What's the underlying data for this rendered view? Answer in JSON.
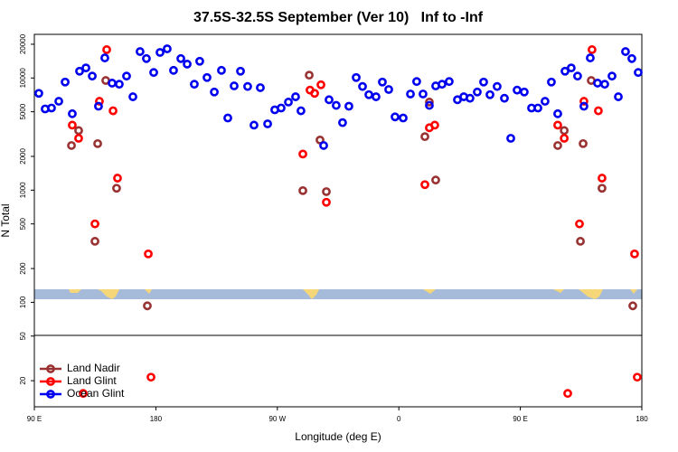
{
  "chart_data": {
    "type": "scatter",
    "title": "37.5S-32.5S September (Ver 10)   Inf to -Inf",
    "xlabel": "Longitude (deg E)",
    "ylabel": "N Total",
    "xlim": [
      90,
      540
    ],
    "xticks": [
      {
        "value": 90,
        "label": "90 E"
      },
      {
        "value": 180,
        "label": "180"
      },
      {
        "value": 270,
        "label": "90 W"
      },
      {
        "value": 360,
        "label": "0"
      },
      {
        "value": 450,
        "label": "90 E"
      },
      {
        "value": 540,
        "label": "180"
      }
    ],
    "ylim": [
      11.7,
      24500
    ],
    "yticks": [
      20,
      50,
      100,
      200,
      500,
      1000,
      2000,
      5000,
      10000,
      20000
    ],
    "log_y": true,
    "legend": "lower left",
    "series": [
      {
        "name": "Land Nadir",
        "color": "#993333",
        "x": [
          117.5,
          122.8,
          134.9,
          136.9,
          142.9,
          150.9,
          173.7,
          288.9,
          293.6,
          301.6,
          306.3,
          379.3,
          382.6,
          387.3,
          477.7,
          482.5,
          494.5,
          496.5,
          502.5,
          510.5,
          533.3
        ],
        "values": [
          2500,
          3400,
          350,
          2600,
          9500,
          1040,
          93,
          990,
          10600,
          2800,
          970,
          3000,
          6100,
          1230,
          2500,
          3400,
          350,
          2600,
          9500,
          1040,
          93
        ]
      },
      {
        "name": "Land Glint",
        "color": "#ff0000",
        "x": [
          118.1,
          122.8,
          134.9,
          138.2,
          143.6,
          148.3,
          151.6,
          174.4,
          176.4,
          126.2,
          288.9,
          294.2,
          297.6,
          302.3,
          306.3,
          379.3,
          382.6,
          386.6,
          477.7,
          482.5,
          493.8,
          497.1,
          503.1,
          507.8,
          510.5,
          534.6,
          536.6,
          485.1
        ],
        "values": [
          3800,
          2900,
          500,
          6200,
          17900,
          5100,
          1280,
          270,
          21.5,
          15.4,
          2100,
          7800,
          7300,
          8700,
          780,
          1120,
          3600,
          3800,
          3800,
          2900,
          500,
          6200,
          17900,
          5100,
          1280,
          270,
          21.5,
          15.4
        ]
      },
      {
        "name": "Ocean Glint",
        "color": "#0000ee",
        "x": [
          93.3,
          98,
          102.7,
          108.1,
          112.8,
          118.1,
          123.5,
          128.2,
          132.9,
          137.5,
          142.2,
          147.6,
          152.9,
          158.3,
          163,
          168.3,
          173,
          178.4,
          183.1,
          188.4,
          193.1,
          198.5,
          203.2,
          208.5,
          212.5,
          217.9,
          223.3,
          228.6,
          233.3,
          238,
          242.7,
          248,
          252.7,
          257.4,
          262.8,
          268.1,
          272.8,
          278.2,
          283.5,
          287.5,
          304.3,
          308.3,
          313.6,
          318.3,
          323,
          328.4,
          333.1,
          337.8,
          343.1,
          347.8,
          352.5,
          357.2,
          363.2,
          368.6,
          373.2,
          377.9,
          382.6,
          387.3,
          392,
          397.3,
          403.4,
          408.1,
          412.7,
          418.1,
          422.8,
          427.5,
          432.8,
          438.2,
          442.9,
          447.6,
          452.9,
          458.3,
          463,
          468.3,
          473,
          477.7,
          483.1,
          487.7,
          492.4,
          497.1,
          501.8,
          507.2,
          512.5,
          517.9,
          522.6,
          527.9,
          532.6,
          537.3
        ],
        "values": [
          7300,
          5300,
          5400,
          6200,
          9200,
          4800,
          11500,
          12300,
          10400,
          5600,
          15100,
          9000,
          8800,
          10400,
          6800,
          17200,
          14900,
          11200,
          16900,
          18200,
          11700,
          14900,
          13300,
          8800,
          14100,
          10100,
          7500,
          11700,
          4400,
          8500,
          11500,
          8400,
          3800,
          8200,
          3900,
          5200,
          5400,
          6100,
          6800,
          5100,
          2500,
          6400,
          5700,
          4000,
          5600,
          10100,
          8400,
          7100,
          6800,
          9200,
          7900,
          4500,
          4400,
          7200,
          9300,
          7200,
          5700,
          8500,
          8800,
          9300,
          6400,
          6800,
          6600,
          7500,
          9200,
          7100,
          8400,
          6600,
          2900,
          7800,
          7500,
          5400,
          5400,
          6200,
          9200,
          4800,
          11500,
          12300,
          10400,
          5600,
          15100,
          9000,
          8800,
          10400,
          6800,
          17200,
          14900,
          11200
        ]
      }
    ]
  }
}
